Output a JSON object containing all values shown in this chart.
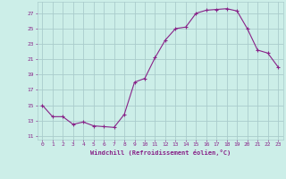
{
  "x": [
    0,
    1,
    2,
    3,
    4,
    5,
    6,
    7,
    8,
    9,
    10,
    11,
    12,
    13,
    14,
    15,
    16,
    17,
    18,
    19,
    20,
    21,
    22,
    23
  ],
  "y": [
    15.0,
    13.5,
    13.5,
    12.5,
    12.8,
    12.3,
    12.2,
    12.1,
    13.8,
    18.0,
    18.5,
    21.2,
    23.5,
    25.0,
    25.2,
    27.0,
    27.4,
    27.5,
    27.6,
    27.3,
    25.0,
    22.2,
    21.8,
    20.0
  ],
  "ylim": [
    10.5,
    28.5
  ],
  "xlim": [
    -0.5,
    23.5
  ],
  "yticks": [
    11,
    13,
    15,
    17,
    19,
    21,
    23,
    25,
    27
  ],
  "xticks": [
    0,
    1,
    2,
    3,
    4,
    5,
    6,
    7,
    8,
    9,
    10,
    11,
    12,
    13,
    14,
    15,
    16,
    17,
    18,
    19,
    20,
    21,
    22,
    23
  ],
  "xlabel": "Windchill (Refroidissement éolien,°C)",
  "line_color": "#882288",
  "marker": "+",
  "bg_color": "#cceee8",
  "grid_color": "#aacccc",
  "tick_color": "#882288",
  "label_color": "#882288"
}
